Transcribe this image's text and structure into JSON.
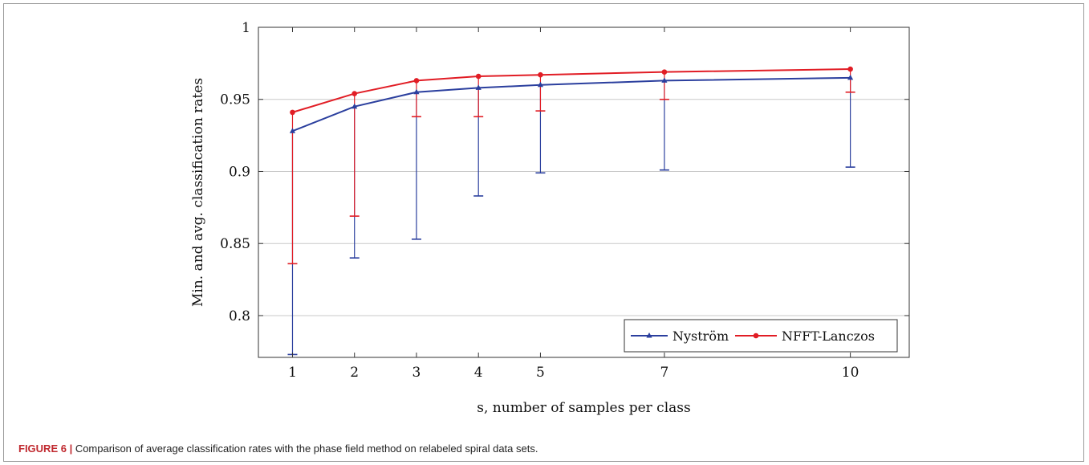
{
  "caption": {
    "figure_label": "FIGURE 6 |",
    "text": " Comparison of average classification rates with the phase field method on relabeled spiral data sets."
  },
  "chart_data": {
    "type": "line",
    "xlabel": "s, number of samples per class",
    "ylabel": "Min. and avg. classification rates",
    "x_ticks": [
      1,
      2,
      3,
      4,
      5,
      7,
      10
    ],
    "y_ticks": [
      0.8,
      0.85,
      0.9,
      0.95,
      1
    ],
    "y_tick_labels": [
      "0.8",
      "0.85",
      "0.9",
      "0.95",
      "1"
    ],
    "xlim": [
      0.45,
      10.95
    ],
    "ylim": [
      0.771,
      1.0
    ],
    "grid": "horizontal",
    "legend_position": "bottom-right",
    "x": [
      1,
      2,
      3,
      4,
      5,
      7,
      10
    ],
    "series": [
      {
        "name": "Nyström",
        "color": "#2b3f9e",
        "marker": "triangle",
        "values": [
          0.928,
          0.945,
          0.955,
          0.958,
          0.96,
          0.963,
          0.965
        ],
        "min": [
          0.773,
          0.84,
          0.853,
          0.883,
          0.899,
          0.901,
          0.903
        ]
      },
      {
        "name": "NFFT-Lanczos",
        "color": "#e11d25",
        "marker": "circle",
        "values": [
          0.941,
          0.954,
          0.963,
          0.966,
          0.967,
          0.969,
          0.971
        ],
        "min": [
          0.836,
          0.869,
          0.938,
          0.938,
          0.942,
          0.95,
          0.955
        ]
      }
    ]
  }
}
